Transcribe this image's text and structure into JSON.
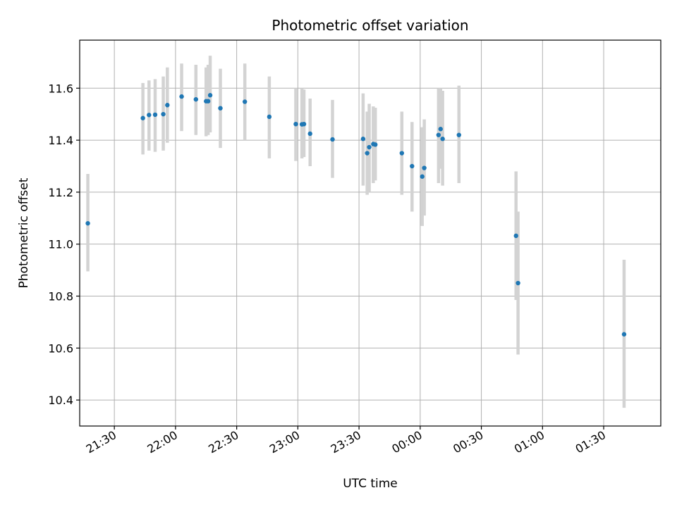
{
  "chart_data": {
    "type": "scatter",
    "title": "Photometric offset variation",
    "xlabel": "UTC time",
    "ylabel": "Photometric offset",
    "x_range": [
      "21:13",
      "01:58"
    ],
    "ylim": [
      10.3,
      11.785
    ],
    "grid": true,
    "x_ticks": [
      {
        "time": "21:30",
        "label": "21:30"
      },
      {
        "time": "22:00",
        "label": "22:00"
      },
      {
        "time": "22:30",
        "label": "22:30"
      },
      {
        "time": "23:00",
        "label": "23:00"
      },
      {
        "time": "23:30",
        "label": "23:30"
      },
      {
        "time": "00:00",
        "label": "00:00"
      },
      {
        "time": "00:30",
        "label": "00:30"
      },
      {
        "time": "01:00",
        "label": "01:00"
      },
      {
        "time": "01:30",
        "label": "01:30"
      }
    ],
    "y_ticks": [
      {
        "value": 10.4,
        "label": "10.4"
      },
      {
        "value": 10.6,
        "label": "10.6"
      },
      {
        "value": 10.8,
        "label": "10.8"
      },
      {
        "value": 11.0,
        "label": "11.0"
      },
      {
        "value": 11.2,
        "label": "11.2"
      },
      {
        "value": 11.4,
        "label": "11.4"
      },
      {
        "value": 11.6,
        "label": "11.6"
      }
    ],
    "colors": {
      "point": "#1f77b4",
      "errorbar": "#d3d3d3",
      "grid": "#b0b0b0"
    },
    "points": [
      {
        "time": "21:17",
        "y": 11.08,
        "lo": 10.895,
        "hi": 11.27
      },
      {
        "time": "21:44",
        "y": 11.485,
        "lo": 11.345,
        "hi": 11.62
      },
      {
        "time": "21:47",
        "y": 11.497,
        "lo": 11.36,
        "hi": 11.63
      },
      {
        "time": "21:50",
        "y": 11.498,
        "lo": 11.355,
        "hi": 11.635
      },
      {
        "time": "21:54",
        "y": 11.5,
        "lo": 11.36,
        "hi": 11.645
      },
      {
        "time": "21:56",
        "y": 11.535,
        "lo": 11.39,
        "hi": 11.68
      },
      {
        "time": "22:03",
        "y": 11.568,
        "lo": 11.435,
        "hi": 11.695
      },
      {
        "time": "22:10",
        "y": 11.557,
        "lo": 11.42,
        "hi": 11.69
      },
      {
        "time": "22:15",
        "y": 11.55,
        "lo": 11.415,
        "hi": 11.68
      },
      {
        "time": "22:16",
        "y": 11.55,
        "lo": 11.42,
        "hi": 11.69
      },
      {
        "time": "22:17",
        "y": 11.573,
        "lo": 11.43,
        "hi": 11.725
      },
      {
        "time": "22:22",
        "y": 11.523,
        "lo": 11.37,
        "hi": 11.675
      },
      {
        "time": "22:34",
        "y": 11.548,
        "lo": 11.4,
        "hi": 11.695
      },
      {
        "time": "22:46",
        "y": 11.49,
        "lo": 11.33,
        "hi": 11.645
      },
      {
        "time": "22:59",
        "y": 11.462,
        "lo": 11.32,
        "hi": 11.6
      },
      {
        "time": "23:02",
        "y": 11.461,
        "lo": 11.33,
        "hi": 11.6
      },
      {
        "time": "23:03",
        "y": 11.462,
        "lo": 11.335,
        "hi": 11.595
      },
      {
        "time": "23:06",
        "y": 11.425,
        "lo": 11.3,
        "hi": 11.56
      },
      {
        "time": "23:17",
        "y": 11.403,
        "lo": 11.255,
        "hi": 11.555
      },
      {
        "time": "23:32",
        "y": 11.405,
        "lo": 11.225,
        "hi": 11.58
      },
      {
        "time": "23:34",
        "y": 11.35,
        "lo": 11.19,
        "hi": 11.51
      },
      {
        "time": "23:35",
        "y": 11.373,
        "lo": 11.2,
        "hi": 11.54
      },
      {
        "time": "23:37",
        "y": 11.385,
        "lo": 11.235,
        "hi": 11.53
      },
      {
        "time": "23:38",
        "y": 11.383,
        "lo": 11.245,
        "hi": 11.525
      },
      {
        "time": "23:51",
        "y": 11.35,
        "lo": 11.19,
        "hi": 11.51
      },
      {
        "time": "23:56",
        "y": 11.3,
        "lo": 11.125,
        "hi": 11.47
      },
      {
        "time": "00:01",
        "y": 11.26,
        "lo": 11.07,
        "hi": 11.45
      },
      {
        "time": "00:02",
        "y": 11.293,
        "lo": 11.11,
        "hi": 11.48
      },
      {
        "time": "00:09",
        "y": 11.42,
        "lo": 11.235,
        "hi": 11.6
      },
      {
        "time": "00:10",
        "y": 11.443,
        "lo": 11.29,
        "hi": 11.6
      },
      {
        "time": "00:11",
        "y": 11.405,
        "lo": 11.225,
        "hi": 11.59
      },
      {
        "time": "00:19",
        "y": 11.42,
        "lo": 11.235,
        "hi": 11.61
      },
      {
        "time": "00:47",
        "y": 11.032,
        "lo": 10.785,
        "hi": 11.28
      },
      {
        "time": "00:48",
        "y": 10.85,
        "lo": 10.575,
        "hi": 11.125
      },
      {
        "time": "01:40",
        "y": 10.653,
        "lo": 10.37,
        "hi": 10.94
      }
    ]
  }
}
